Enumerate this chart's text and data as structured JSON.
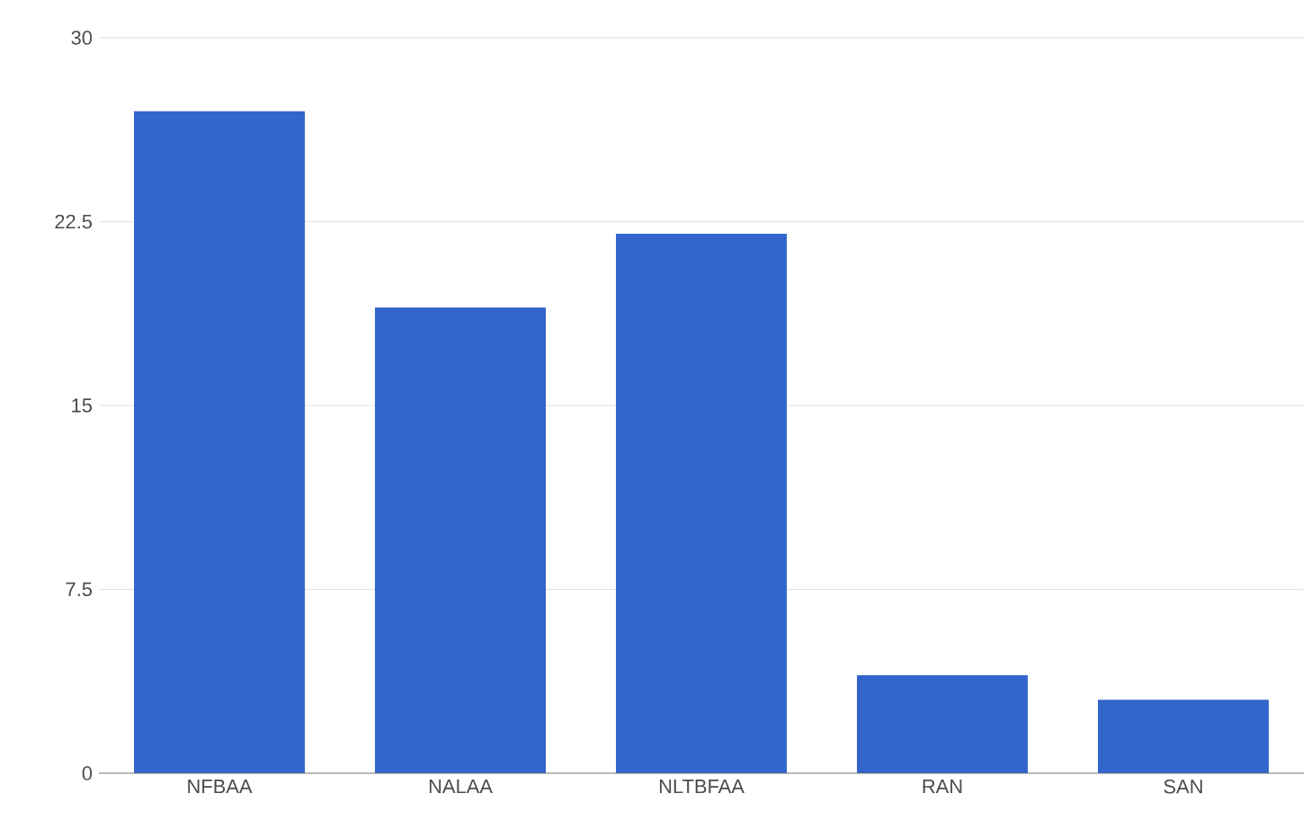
{
  "chart_data": {
    "type": "bar",
    "categories": [
      "NFBAA",
      "NALAA",
      "NLTBFAA",
      "RAN",
      "SAN"
    ],
    "values": [
      27,
      19,
      22,
      4,
      3
    ],
    "color": "#3366cc",
    "ylim": [
      0,
      30
    ],
    "yticks": [
      0,
      7.5,
      15,
      22.5,
      30
    ],
    "grid": "y"
  }
}
